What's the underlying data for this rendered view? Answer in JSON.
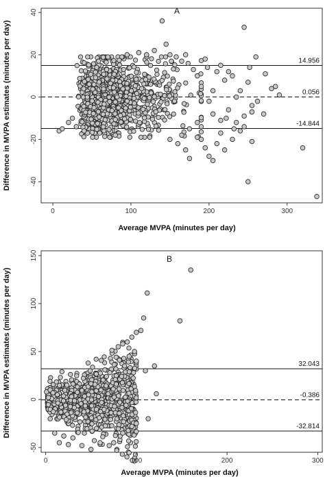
{
  "chart_data": [
    {
      "type": "scatter",
      "panel_label": "A",
      "xlabel": "Average MVPA (minutes per day)",
      "ylabel": "Difference in MVPA estimates (minutes per day)",
      "xlim": [
        -15,
        345
      ],
      "ylim": [
        -50,
        42
      ],
      "xticks": [
        0,
        100,
        200,
        300
      ],
      "yticks": [
        40,
        20,
        0,
        -20,
        -40
      ],
      "reference_lines": [
        {
          "value": 14.956,
          "label": "14.956",
          "style": "solid"
        },
        {
          "value": 0.056,
          "label": "0.056",
          "style": "dashed"
        },
        {
          "value": -14.844,
          "label": "-14.844",
          "style": "solid"
        }
      ],
      "bulk": {
        "x_range": [
          10,
          190
        ],
        "y_center": 0,
        "y_spread": 9,
        "n": 1100
      },
      "points": [
        [
          8,
          -16
        ],
        [
          12,
          -15
        ],
        [
          20,
          -12
        ],
        [
          30,
          -14
        ],
        [
          25,
          -10
        ],
        [
          40,
          -16
        ],
        [
          60,
          -17
        ],
        [
          80,
          -18
        ],
        [
          140,
          36
        ],
        [
          145,
          25
        ],
        [
          130,
          22
        ],
        [
          150,
          20
        ],
        [
          95,
          20
        ],
        [
          110,
          21
        ],
        [
          120,
          20
        ],
        [
          150,
          -20
        ],
        [
          160,
          -22
        ],
        [
          165,
          -18
        ],
        [
          170,
          -25
        ],
        [
          175,
          -29
        ],
        [
          185,
          -19
        ],
        [
          190,
          -20
        ],
        [
          195,
          -24
        ],
        [
          200,
          -28
        ],
        [
          205,
          -30
        ],
        [
          210,
          -22
        ],
        [
          215,
          -17
        ],
        [
          220,
          -25
        ],
        [
          230,
          -20
        ],
        [
          240,
          -16
        ],
        [
          245,
          -14
        ],
        [
          250,
          -40
        ],
        [
          255,
          -21
        ],
        [
          320,
          -24
        ],
        [
          338,
          -47
        ],
        [
          245,
          33
        ],
        [
          260,
          19
        ],
        [
          270,
          -8
        ],
        [
          272,
          11
        ],
        [
          280,
          4
        ],
        [
          285,
          5
        ],
        [
          290,
          1
        ],
        [
          252,
          14
        ],
        [
          255,
          -4
        ],
        [
          250,
          7
        ],
        [
          240,
          3
        ],
        [
          235,
          0
        ],
        [
          230,
          10
        ],
        [
          225,
          12
        ],
        [
          220,
          8
        ],
        [
          215,
          15
        ],
        [
          210,
          12
        ],
        [
          205,
          3
        ],
        [
          200,
          -2
        ],
        [
          198,
          14
        ],
        [
          195,
          18
        ],
        [
          205,
          -8
        ],
        [
          215,
          -11
        ],
        [
          225,
          -6
        ],
        [
          235,
          -12
        ],
        [
          245,
          -9
        ],
        [
          255,
          -7
        ],
        [
          262,
          -2
        ],
        [
          222,
          -10
        ],
        [
          232,
          -15
        ],
        [
          180,
          13
        ],
        [
          185,
          10
        ],
        [
          190,
          5
        ],
        [
          185,
          -12
        ],
        [
          175,
          -15
        ],
        [
          165,
          17
        ],
        [
          170,
          20
        ],
        [
          158,
          19
        ]
      ]
    },
    {
      "type": "scatter",
      "panel_label": "B",
      "xlabel": "Average MVPA (minutes per day)",
      "ylabel": "Difference in MVPA estimates (minutes per day)",
      "xlim": [
        -5,
        305
      ],
      "ylim": [
        -55,
        155
      ],
      "xticks": [
        0,
        100,
        200,
        300
      ],
      "yticks": [
        150,
        100,
        50,
        0,
        -50
      ],
      "reference_lines": [
        {
          "value": 32.043,
          "label": "32.043",
          "style": "solid"
        },
        {
          "value": -0.386,
          "label": "-0.386",
          "style": "dashed"
        },
        {
          "value": -32.814,
          "label": "-32.814",
          "style": "solid"
        }
      ],
      "bulk": {
        "x_range": [
          2,
          100
        ],
        "y_center": 0,
        "y_spread": 12,
        "n": 1100
      },
      "points": [
        [
          160,
          135
        ],
        [
          112,
          111
        ],
        [
          148,
          82
        ],
        [
          108,
          85
        ],
        [
          105,
          72
        ],
        [
          100,
          70
        ],
        [
          95,
          65
        ],
        [
          90,
          60
        ],
        [
          85,
          58
        ],
        [
          80,
          55
        ],
        [
          120,
          35
        ],
        [
          110,
          30
        ],
        [
          100,
          40
        ],
        [
          98,
          50
        ],
        [
          92,
          45
        ],
        [
          122,
          6
        ],
        [
          113,
          -20
        ],
        [
          100,
          -25
        ],
        [
          95,
          -28
        ],
        [
          85,
          -35
        ],
        [
          75,
          -45
        ],
        [
          70,
          -48
        ],
        [
          60,
          -45
        ],
        [
          50,
          -52
        ],
        [
          40,
          -48
        ],
        [
          30,
          -40
        ],
        [
          20,
          -38
        ],
        [
          10,
          -35
        ],
        [
          5,
          -20
        ],
        [
          1,
          8
        ],
        [
          5,
          10
        ],
        [
          8,
          7
        ],
        [
          3,
          2
        ],
        [
          15,
          -45
        ],
        [
          25,
          -47
        ]
      ]
    }
  ]
}
